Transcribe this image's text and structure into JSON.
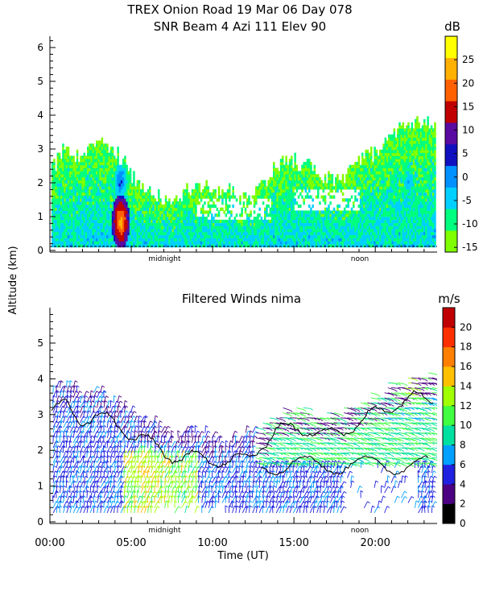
{
  "header": {
    "title_line1": "TREX Onion Road  19 Mar 06 Day 078",
    "title_line2": "SNR Beam 4 Azi 111 Elev 90"
  },
  "shared": {
    "ylabel": "Altitude (km)",
    "xlabel": "Time (UT)",
    "marker_midnight": "midnight",
    "marker_noon": "noon",
    "x_ticks": [
      "00:00",
      "05:00",
      "10:00",
      "15:00",
      "20:00"
    ],
    "x_tick_values_hours": [
      0,
      5,
      10,
      15,
      20
    ]
  },
  "colors": {
    "snr_scale": [
      "#7fff00",
      "#00ff7f",
      "#00d0ff",
      "#0090ff",
      "#1010c0",
      "#5a0aa0",
      "#c00000",
      "#ff6000",
      "#ffb000",
      "#ffff00"
    ],
    "wind_scale": [
      "#000000",
      "#4b0082",
      "#2020e0",
      "#00a0ff",
      "#00e0a0",
      "#40ff40",
      "#a0ff00",
      "#ffc000",
      "#ff8000",
      "#ff3000",
      "#c00000"
    ],
    "contour": "#000000"
  },
  "chart_data": [
    {
      "type": "heatmap",
      "title": "SNR Beam 4 Azi 111 Elev 90",
      "xlabel": "",
      "ylabel": "Altitude (km)",
      "xlim_hours": [
        0,
        23.8
      ],
      "ylim": [
        0,
        6.4
      ],
      "y_ticks": [
        0,
        1,
        2,
        3,
        4,
        5,
        6
      ],
      "colorbar": {
        "unit": "dB",
        "ticks": [
          -15,
          -10,
          -5,
          0,
          5,
          10,
          15,
          20,
          25
        ],
        "range": [
          -16,
          30
        ]
      },
      "echo_top_km": [
        [
          0.0,
          2.3
        ],
        [
          1.0,
          3.1
        ],
        [
          2.0,
          2.6
        ],
        [
          3.0,
          3.3
        ],
        [
          4.0,
          2.9
        ],
        [
          5.0,
          2.2
        ],
        [
          6.0,
          1.7
        ],
        [
          7.0,
          1.4
        ],
        [
          8.0,
          1.6
        ],
        [
          9.0,
          1.9
        ],
        [
          10.0,
          1.7
        ],
        [
          11.0,
          1.8
        ],
        [
          12.0,
          1.5
        ],
        [
          13.0,
          1.9
        ],
        [
          14.0,
          2.5
        ],
        [
          15.0,
          2.6
        ],
        [
          16.0,
          2.4
        ],
        [
          17.0,
          2.1
        ],
        [
          18.0,
          2.0
        ],
        [
          19.0,
          2.6
        ],
        [
          20.0,
          2.9
        ],
        [
          21.0,
          3.4
        ],
        [
          22.0,
          3.7
        ],
        [
          23.0,
          3.8
        ],
        [
          23.5,
          3.7
        ]
      ],
      "features": [
        {
          "time_hours": 4.3,
          "altitude_km": 0.8,
          "value_db": 25
        },
        {
          "time_hours": 4.3,
          "altitude_km": 2.0,
          "value_db": 5
        },
        {
          "time_hours": 22.0,
          "altitude_km": 2.0,
          "value_db": 0
        }
      ]
    },
    {
      "type": "scatter",
      "title": "Filtered Winds nima",
      "xlabel": "Time (UT)",
      "ylabel": "Altitude (km)",
      "xlim_hours": [
        0,
        23.8
      ],
      "ylim": [
        0,
        6
      ],
      "y_ticks": [
        0,
        1,
        2,
        3,
        4,
        5
      ],
      "colorbar": {
        "unit": "m/s",
        "ticks": [
          0,
          2,
          4,
          6,
          8,
          10,
          12,
          14,
          16,
          18,
          20
        ],
        "range": [
          0,
          22
        ]
      },
      "max_altitude_km": [
        [
          0.0,
          3.6
        ],
        [
          1.0,
          3.8
        ],
        [
          2.0,
          3.4
        ],
        [
          3.0,
          3.5
        ],
        [
          4.0,
          3.3
        ],
        [
          5.0,
          3.0
        ],
        [
          6.0,
          2.8
        ],
        [
          7.0,
          2.5
        ],
        [
          8.0,
          2.3
        ],
        [
          9.0,
          2.4
        ],
        [
          10.0,
          2.3
        ],
        [
          11.0,
          2.2
        ],
        [
          12.0,
          2.3
        ],
        [
          13.0,
          2.7
        ],
        [
          14.0,
          3.1
        ],
        [
          15.0,
          3.2
        ],
        [
          16.0,
          3.1
        ],
        [
          17.0,
          3.0
        ],
        [
          18.0,
          3.1
        ],
        [
          19.0,
          3.3
        ],
        [
          20.0,
          3.6
        ],
        [
          21.0,
          3.8
        ],
        [
          22.0,
          4.0
        ],
        [
          23.0,
          4.0
        ]
      ],
      "speed_features": [
        {
          "time_hours": 5.8,
          "altitude_km": 1.3,
          "speed_ms": 15
        },
        {
          "time_hours": 22.0,
          "altitude_km": 3.9,
          "speed_ms": 14
        },
        {
          "time_hours": 14.0,
          "altitude_km": 2.5,
          "speed_ms": 9
        }
      ]
    }
  ]
}
